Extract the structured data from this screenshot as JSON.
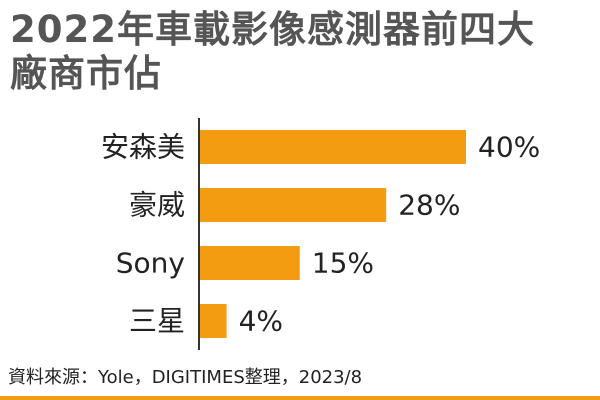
{
  "title_lines": [
    "2022年車載影像感測器前四大",
    "廠商市佔"
  ],
  "source": "資料來源：Yole，DIGITIMES整理，2023/8",
  "colors": {
    "bar": "#f39c12",
    "axis": "#333333",
    "title": "#555555",
    "accent": "#f39c12"
  },
  "chart_data": {
    "type": "bar",
    "orientation": "horizontal",
    "title": "2022年車載影像感測器前四大廠商市佔",
    "categories": [
      "安森美",
      "豪威",
      "Sony",
      "三星"
    ],
    "values": [
      40,
      28,
      15,
      4
    ],
    "value_labels": [
      "40%",
      "28%",
      "15%",
      "4%"
    ],
    "unit": "%",
    "xlabel": "",
    "ylabel": "",
    "xlim": [
      0,
      40
    ],
    "grid": false,
    "legend": "none"
  }
}
